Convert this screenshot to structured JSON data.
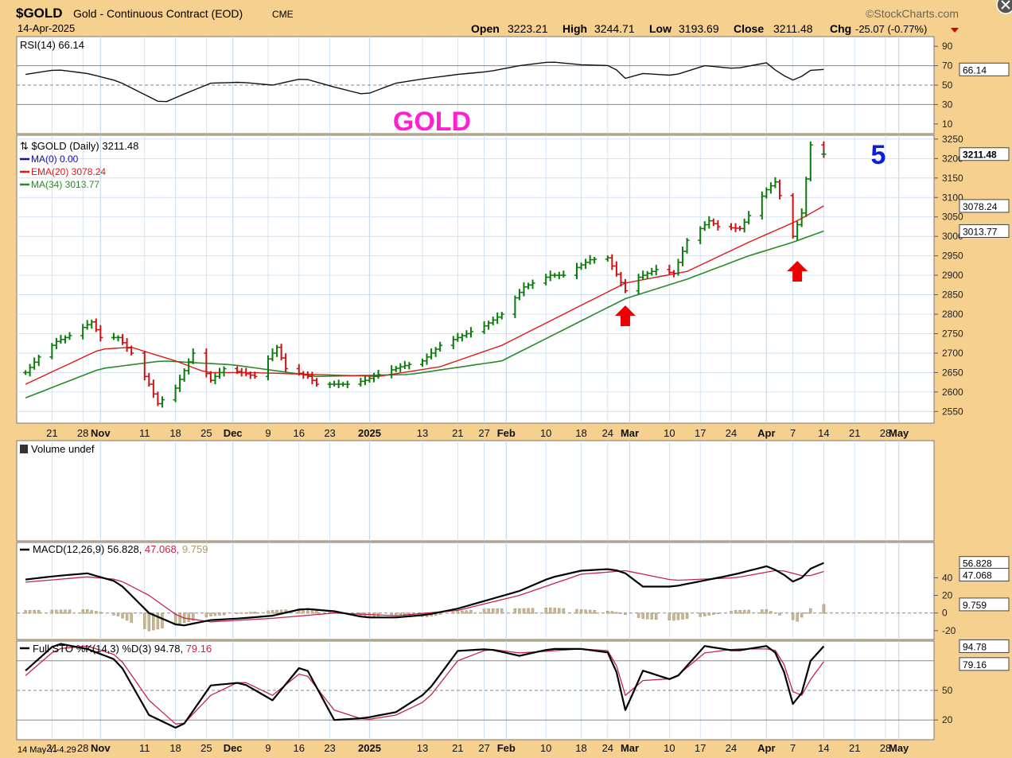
{
  "header": {
    "symbol": "$GOLD",
    "name": "Gold - Continuous Contract (EOD)",
    "exchange": "CME",
    "date": "14-Apr-2025",
    "brand": "©StockCharts.com",
    "quote": {
      "open_label": "Open",
      "open": "3223.21",
      "high_label": "High",
      "high": "3244.71",
      "low_label": "Low",
      "low": "3193.69",
      "close_label": "Close",
      "close": "3211.48",
      "chg_label": "Chg",
      "chg": "-25.07 (-0.77%)"
    }
  },
  "colors": {
    "background": "#f5d08e",
    "panel": "#ffffff",
    "grid": "#c9dcef",
    "up": "#0a7a0a",
    "down": "#d01010",
    "ema": "#e01818",
    "ma34": "#2a8a2a",
    "macd_signal": "#c0264a",
    "hist": "#c8b690",
    "title": "#ff1fd0",
    "wave": "#0a1ed8",
    "arrow": "#ee0000"
  },
  "chart_data": [
    {
      "panel": "rsi",
      "type": "line",
      "label": "RSI(14)",
      "value_label": "66.14",
      "ylim": [
        0,
        100
      ],
      "levels": [
        70,
        30
      ],
      "yticks": [
        90,
        70,
        50,
        30,
        10
      ],
      "x": [
        "2024-10-15",
        "2024-10-22",
        "2024-10-29",
        "2024-11-05",
        "2024-11-12",
        "2024-11-15",
        "2024-11-19",
        "2024-11-26",
        "2024-12-03",
        "2024-12-10",
        "2024-12-17",
        "2024-12-24",
        "2024-12-31",
        "2025-01-07",
        "2025-01-14",
        "2025-01-21",
        "2025-01-28",
        "2025-02-04",
        "2025-02-11",
        "2025-02-18",
        "2025-02-25",
        "2025-02-28",
        "2025-03-04",
        "2025-03-11",
        "2025-03-18",
        "2025-03-25",
        "2025-04-01",
        "2025-04-04",
        "2025-04-08",
        "2025-04-10",
        "2025-04-14"
      ],
      "y": [
        61,
        66,
        62,
        54,
        38,
        31,
        39,
        52,
        53,
        50,
        57,
        48,
        40,
        52,
        57,
        61,
        64,
        70,
        74,
        71,
        70,
        57,
        62,
        60,
        70,
        67,
        73,
        62,
        53,
        65,
        66.14
      ]
    },
    {
      "panel": "price",
      "type": "ohlc",
      "title": "GOLD",
      "wave_label": "5",
      "legend": [
        {
          "name": "$GOLD (Daily)",
          "value": "3211.48"
        },
        {
          "name": "MA(0)",
          "value": "0.00"
        },
        {
          "name": "EMA(20)",
          "value": "3078.24"
        },
        {
          "name": "MA(34)",
          "value": "3013.77"
        }
      ],
      "ylim": [
        2520,
        3260
      ],
      "yticks": [
        3250,
        3200,
        3150,
        3100,
        3050,
        3000,
        2950,
        2900,
        2850,
        2800,
        2750,
        2700,
        2650,
        2600,
        2550
      ],
      "last_price_label": "3211.48",
      "ema_label": "3078.24",
      "ma34_label": "3013.77",
      "close_series": {
        "x": [
          "2024-10-15",
          "2024-10-18",
          "2024-10-22",
          "2024-10-25",
          "2024-10-30",
          "2024-11-01",
          "2024-11-05",
          "2024-11-08",
          "2024-11-12",
          "2024-11-14",
          "2024-11-18",
          "2024-11-22",
          "2024-11-26",
          "2024-11-29",
          "2024-12-03",
          "2024-12-06",
          "2024-12-11",
          "2024-12-13",
          "2024-12-18",
          "2024-12-20",
          "2024-12-27",
          "2024-12-31",
          "2025-01-03",
          "2025-01-08",
          "2025-01-13",
          "2025-01-17",
          "2025-01-22",
          "2025-01-27",
          "2025-01-31",
          "2025-02-05",
          "2025-02-11",
          "2025-02-14",
          "2025-02-20",
          "2025-02-24",
          "2025-02-28",
          "2025-03-03",
          "2025-03-07",
          "2025-03-11",
          "2025-03-14",
          "2025-03-19",
          "2025-03-21",
          "2025-03-26",
          "2025-04-01",
          "2025-04-03",
          "2025-04-07",
          "2025-04-09",
          "2025-04-11",
          "2025-04-14"
        ],
        "y": [
          2650,
          2690,
          2730,
          2745,
          2780,
          2740,
          2740,
          2700,
          2620,
          2570,
          2610,
          2700,
          2630,
          2660,
          2650,
          2640,
          2715,
          2660,
          2640,
          2620,
          2620,
          2630,
          2645,
          2665,
          2680,
          2720,
          2745,
          2770,
          2800,
          2870,
          2900,
          2900,
          2940,
          2945,
          2860,
          2895,
          2915,
          2905,
          2990,
          3040,
          3025,
          3020,
          3120,
          3140,
          3000,
          3060,
          3235,
          3211.48
        ]
      },
      "ema20": {
        "x": [
          "2024-10-15",
          "2024-11-01",
          "2024-11-08",
          "2024-11-18",
          "2024-11-25",
          "2024-12-05",
          "2024-12-20",
          "2025-01-03",
          "2025-01-17",
          "2025-01-31",
          "2025-02-14",
          "2025-02-28",
          "2025-03-14",
          "2025-03-28",
          "2025-04-04",
          "2025-04-08",
          "2025-04-14"
        ],
        "y": [
          2620,
          2710,
          2715,
          2680,
          2650,
          2650,
          2645,
          2640,
          2665,
          2720,
          2800,
          2880,
          2910,
          2985,
          3020,
          3040,
          3078.24
        ]
      },
      "ma34": {
        "x": [
          "2024-10-15",
          "2024-11-01",
          "2024-11-15",
          "2024-12-01",
          "2024-12-20",
          "2025-01-10",
          "2025-01-31",
          "2025-02-14",
          "2025-02-28",
          "2025-03-14",
          "2025-03-28",
          "2025-04-07",
          "2025-04-14"
        ],
        "y": [
          2585,
          2660,
          2680,
          2670,
          2640,
          2645,
          2680,
          2760,
          2840,
          2890,
          2950,
          2985,
          3013.77
        ]
      },
      "arrows": [
        "2025-02-28",
        "2025-04-08"
      ]
    },
    {
      "panel": "volume",
      "type": "bar",
      "label": "Volume undef"
    },
    {
      "panel": "macd",
      "type": "line",
      "label": "MACD(12,26,9)",
      "values": [
        "56.828",
        "47.068",
        "9.759"
      ],
      "ylim": [
        -30,
        80
      ],
      "yticks": [
        40,
        20,
        0,
        -20
      ],
      "series": [
        {
          "role": "macd",
          "x": [
            "2024-10-15",
            "2024-10-22",
            "2024-10-29",
            "2024-11-05",
            "2024-11-12",
            "2024-11-19",
            "2024-11-26",
            "2024-12-03",
            "2024-12-10",
            "2024-12-17",
            "2024-12-24",
            "2024-12-31",
            "2025-01-07",
            "2025-01-14",
            "2025-01-21",
            "2025-01-28",
            "2025-02-04",
            "2025-02-11",
            "2025-02-18",
            "2025-02-25",
            "2025-02-28",
            "2025-03-04",
            "2025-03-11",
            "2025-03-18",
            "2025-03-25",
            "2025-04-01",
            "2025-04-04",
            "2025-04-08",
            "2025-04-10",
            "2025-04-14"
          ],
          "y": [
            38,
            42,
            45,
            35,
            0,
            -15,
            -8,
            -6,
            -3,
            5,
            2,
            -5,
            -5,
            -2,
            5,
            15,
            25,
            40,
            48,
            50,
            45,
            30,
            30,
            37,
            44,
            53,
            47,
            32,
            48,
            56.828
          ]
        },
        {
          "role": "signal",
          "x": [
            "2024-10-15",
            "2024-10-29",
            "2024-11-05",
            "2024-11-12",
            "2024-11-19",
            "2024-11-26",
            "2024-12-10",
            "2024-12-24",
            "2025-01-07",
            "2025-01-21",
            "2025-02-04",
            "2025-02-18",
            "2025-02-28",
            "2025-03-11",
            "2025-03-25",
            "2025-04-04",
            "2025-04-10",
            "2025-04-14"
          ],
          "y": [
            35,
            41,
            38,
            20,
            -5,
            -10,
            -6,
            0,
            -3,
            3,
            20,
            44,
            48,
            37,
            40,
            49,
            41,
            47.068
          ]
        }
      ],
      "histogram": {
        "x": [
          "2024-10-15",
          "2024-10-29",
          "2024-11-05",
          "2024-11-12",
          "2024-11-19",
          "2024-11-26",
          "2024-12-03",
          "2024-12-10",
          "2024-12-17",
          "2024-12-24",
          "2024-12-31",
          "2025-01-07",
          "2025-01-14",
          "2025-01-21",
          "2025-01-28",
          "2025-02-04",
          "2025-02-11",
          "2025-02-18",
          "2025-02-25",
          "2025-03-04",
          "2025-03-11",
          "2025-03-18",
          "2025-03-25",
          "2025-04-01",
          "2025-04-04",
          "2025-04-08",
          "2025-04-11",
          "2025-04-14"
        ],
        "y": [
          3,
          4,
          -3,
          -20,
          -12,
          -3,
          0,
          3,
          5,
          2,
          -4,
          -2,
          -4,
          2,
          5,
          5,
          6,
          4,
          2,
          -6,
          -8,
          -3,
          3,
          4,
          -2,
          -9,
          5,
          9.759
        ]
      }
    },
    {
      "panel": "sto",
      "type": "line",
      "label": "Full STO %K(14,3) %D(3)",
      "values": [
        "94.78",
        "79.16"
      ],
      "ylim": [
        0,
        100
      ],
      "levels": [
        80,
        20
      ],
      "yticks": [
        50,
        20
      ],
      "series": [
        {
          "role": "k",
          "x": [
            "2024-10-15",
            "2024-10-22",
            "2024-10-29",
            "2024-11-05",
            "2024-11-12",
            "2024-11-19",
            "2024-11-26",
            "2024-12-03",
            "2024-12-10",
            "2024-12-17",
            "2024-12-24",
            "2024-12-31",
            "2025-01-07",
            "2025-01-14",
            "2025-01-21",
            "2025-01-28",
            "2025-02-04",
            "2025-02-11",
            "2025-02-18",
            "2025-02-25",
            "2025-02-28",
            "2025-03-04",
            "2025-03-11",
            "2025-03-18",
            "2025-03-25",
            "2025-04-01",
            "2025-04-04",
            "2025-04-08",
            "2025-04-10",
            "2025-04-14"
          ],
          "y": [
            70,
            98,
            92,
            80,
            25,
            10,
            55,
            58,
            40,
            78,
            20,
            22,
            28,
            48,
            90,
            92,
            85,
            92,
            92,
            88,
            30,
            70,
            60,
            95,
            90,
            95,
            85,
            20,
            75,
            94.78
          ]
        },
        {
          "role": "d",
          "x": [
            "2024-10-15",
            "2024-10-22",
            "2024-10-29",
            "2024-11-05",
            "2024-11-12",
            "2024-11-19",
            "2024-11-26",
            "2024-12-03",
            "2024-12-10",
            "2024-12-17",
            "2024-12-24",
            "2024-12-31",
            "2025-01-07",
            "2025-01-14",
            "2025-01-21",
            "2025-01-28",
            "2025-02-04",
            "2025-02-11",
            "2025-02-18",
            "2025-02-25",
            "2025-02-28",
            "2025-03-04",
            "2025-03-11",
            "2025-03-18",
            "2025-03-25",
            "2025-04-01",
            "2025-04-04",
            "2025-04-08",
            "2025-04-10",
            "2025-04-14"
          ],
          "y": [
            65,
            92,
            95,
            85,
            40,
            12,
            45,
            60,
            45,
            70,
            30,
            20,
            25,
            40,
            80,
            92,
            88,
            90,
            92,
            90,
            45,
            60,
            62,
            88,
            92,
            92,
            90,
            35,
            55,
            79.16
          ]
        }
      ]
    }
  ],
  "x_axis": {
    "labels": [
      {
        "date": "2024-10-21",
        "text": "21",
        "bold": false
      },
      {
        "date": "2024-10-28",
        "text": "28",
        "bold": false
      },
      {
        "date": "2024-11-01",
        "text": "Nov",
        "bold": true
      },
      {
        "date": "2024-11-11",
        "text": "11",
        "bold": false
      },
      {
        "date": "2024-11-18",
        "text": "18",
        "bold": false
      },
      {
        "date": "2024-11-25",
        "text": "25",
        "bold": false
      },
      {
        "date": "2024-12-01",
        "text": "Dec",
        "bold": true
      },
      {
        "date": "2024-12-09",
        "text": "9",
        "bold": false
      },
      {
        "date": "2024-12-16",
        "text": "16",
        "bold": false
      },
      {
        "date": "2024-12-23",
        "text": "23",
        "bold": false
      },
      {
        "date": "2025-01-01",
        "text": "2025",
        "bold": true
      },
      {
        "date": "2025-01-13",
        "text": "13",
        "bold": false
      },
      {
        "date": "2025-01-21",
        "text": "21",
        "bold": false
      },
      {
        "date": "2025-01-27",
        "text": "27",
        "bold": false
      },
      {
        "date": "2025-02-01",
        "text": "Feb",
        "bold": true
      },
      {
        "date": "2025-02-10",
        "text": "10",
        "bold": false
      },
      {
        "date": "2025-02-18",
        "text": "18",
        "bold": false
      },
      {
        "date": "2025-02-24",
        "text": "24",
        "bold": false
      },
      {
        "date": "2025-03-01",
        "text": "Mar",
        "bold": true
      },
      {
        "date": "2025-03-10",
        "text": "10",
        "bold": false
      },
      {
        "date": "2025-03-17",
        "text": "17",
        "bold": false
      },
      {
        "date": "2025-03-24",
        "text": "24",
        "bold": false
      },
      {
        "date": "2025-04-01",
        "text": "Apr",
        "bold": true
      },
      {
        "date": "2025-04-07",
        "text": "7",
        "bold": false
      },
      {
        "date": "2025-04-14",
        "text": "14",
        "bold": false
      },
      {
        "date": "2025-04-21",
        "text": "21",
        "bold": false
      },
      {
        "date": "2025-04-28",
        "text": "28",
        "bold": false
      },
      {
        "date": "2025-05-01",
        "text": "May",
        "bold": true
      }
    ],
    "start": "2024-10-13",
    "end": "2025-05-09"
  },
  "footer_note": "14 May Y:-4.29"
}
